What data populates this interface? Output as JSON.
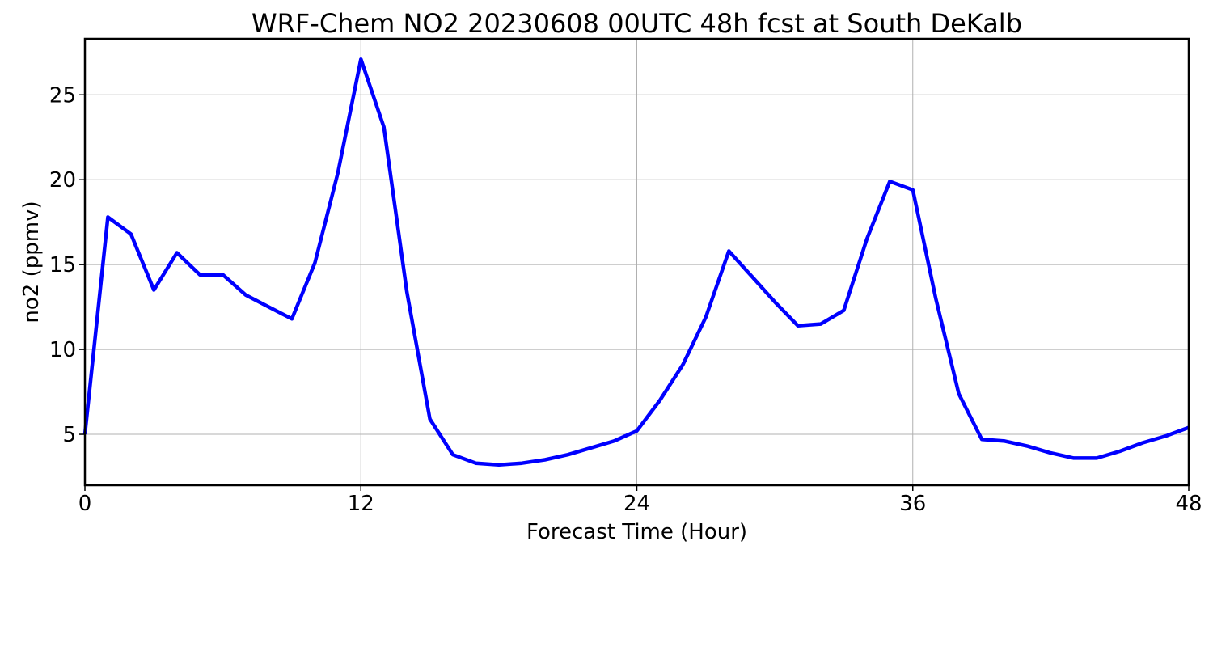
{
  "chart_data": {
    "type": "line",
    "title": "WRF-Chem NO2  20230608 00UTC 48h fcst at South DeKalb",
    "xlabel": "Forecast Time (Hour)",
    "ylabel": "no2  (ppmv)",
    "xlim": [
      0,
      48
    ],
    "ylim": [
      2.0,
      28.3
    ],
    "xticks": [
      0,
      12,
      24,
      36,
      48
    ],
    "yticks": [
      5,
      10,
      15,
      20,
      25
    ],
    "grid": true,
    "series": [
      {
        "color": "#0000ff",
        "x": [
          0,
          1,
          2,
          3,
          4,
          5,
          6,
          7,
          8,
          9,
          10,
          11,
          12,
          13,
          14,
          15,
          16,
          17,
          18,
          19,
          20,
          21,
          22,
          23,
          24,
          25,
          26,
          27,
          28,
          29,
          30,
          31,
          32,
          33,
          34,
          35,
          36,
          37,
          38,
          39,
          40,
          41,
          42,
          43,
          44,
          45,
          46,
          47,
          48
        ],
        "values": [
          5.0,
          17.8,
          16.8,
          13.5,
          15.7,
          14.4,
          14.4,
          13.2,
          12.5,
          11.8,
          15.1,
          20.4,
          27.1,
          23.1,
          13.4,
          5.9,
          3.8,
          3.3,
          3.2,
          3.3,
          3.5,
          3.8,
          4.2,
          4.6,
          5.2,
          7.0,
          9.1,
          11.9,
          15.8,
          14.3,
          12.8,
          11.4,
          11.5,
          12.3,
          16.5,
          19.9,
          19.4,
          13.0,
          7.4,
          4.7,
          4.6,
          4.3,
          3.9,
          3.6,
          3.6,
          4.0,
          4.5,
          4.9,
          5.4
        ]
      }
    ]
  }
}
